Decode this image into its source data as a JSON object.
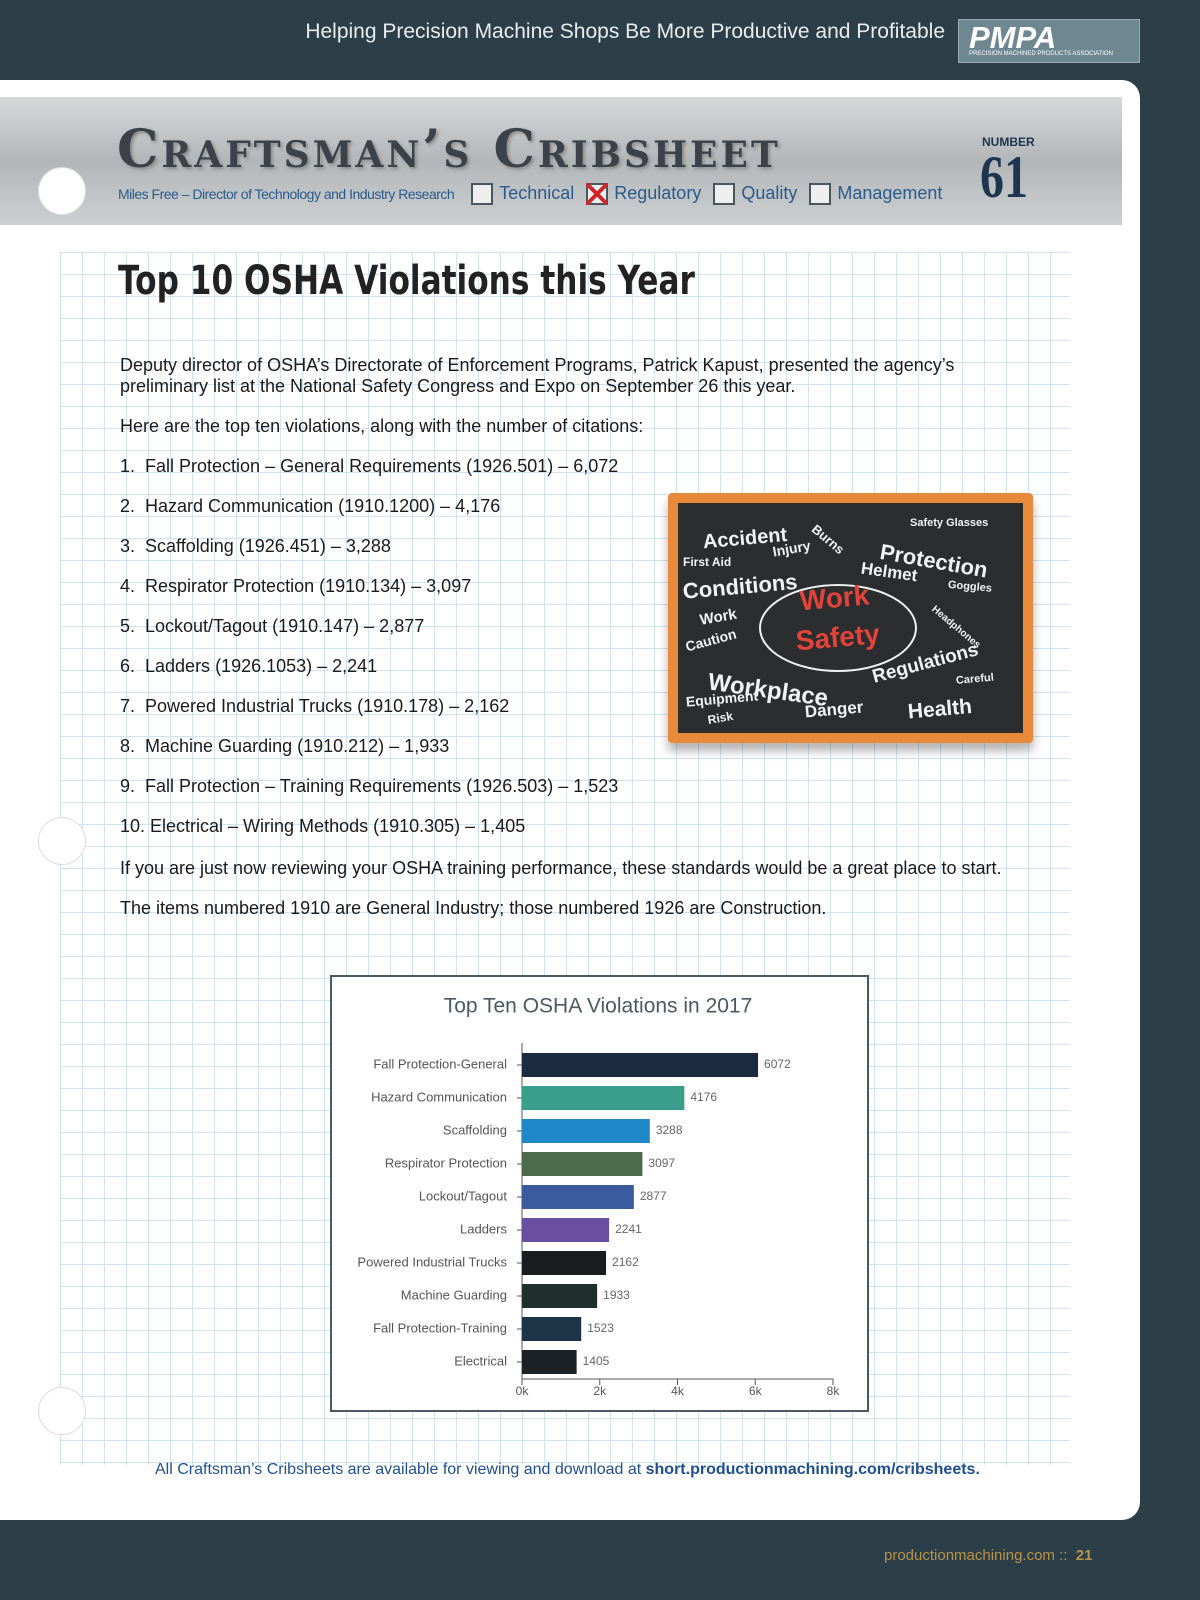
{
  "header": {
    "tagline": "Helping Precision Machine Shops Be More Productive and Profitable",
    "logo": "PMPA",
    "logo_sub": "PRECISION MACHINED PRODUCTS ASSOCIATION"
  },
  "banner": {
    "title": "Craftsman’s Cribsheet",
    "author": "Miles Free – Director of Technology and Industry Research",
    "categories": [
      {
        "label": "Technical",
        "checked": false
      },
      {
        "label": "Regulatory",
        "checked": true
      },
      {
        "label": "Quality",
        "checked": false
      },
      {
        "label": "Management",
        "checked": false
      }
    ],
    "number_label": "NUMBER",
    "number": "61"
  },
  "article": {
    "title": "Top 10 OSHA Violations this Year",
    "intro": "Deputy director of OSHA’s Directorate of Enforcement Programs, Patrick Kapust, presented the agency’s preliminary list at the National Safety Congress and Expo on September 26 this year.",
    "lead": "Here are the top ten violations, along with the number of citations:",
    "list": [
      "1.  Fall Protection – General Requirements (1926.501) – 6,072",
      "2.  Hazard Communication (1910.1200) – 4,176",
      "3.  Scaffolding (1926.451) – 3,288",
      "4.  Respirator Protection (1910.134) – 3,097",
      "5.  Lockout/Tagout (1910.147) – 2,877",
      "6.  Ladders (1926.1053) – 2,241",
      "7.  Powered Industrial Trucks (1910.178) – 2,162",
      "8.  Machine Guarding (1910.212) – 1,933",
      "9.  Fall Protection – Training Requirements (1926.503) – 1,523",
      "10. Electrical – Wiring Methods (1910.305) – 1,405"
    ],
    "closing": [
      "If you are just now reviewing your OSHA training performance, these standards would be a great place to start.",
      "The items numbered 1910 are General Industry; those numbered 1926 are Construction."
    ]
  },
  "chalkboard": {
    "words": [
      "Accident",
      "Burns",
      "Injury",
      "Safety Glasses",
      "Protection",
      "First Aid",
      "Helmet",
      "Conditions",
      "Goggles",
      "Work",
      "Headphones",
      "Work",
      "Safety",
      "Caution",
      "Regulations",
      "Workplace",
      "Careful",
      "Equipment",
      "Danger",
      "Health",
      "Risk"
    ]
  },
  "chart_data": {
    "type": "bar",
    "orientation": "horizontal",
    "title": "Top Ten OSHA Violations in 2017",
    "categories": [
      "Fall Protection-General",
      "Hazard Communication",
      "Scaffolding",
      "Respirator Protection",
      "Lockout/Tagout",
      "Ladders",
      "Powered Industrial Trucks",
      "Machine Guarding",
      "Fall Protection-Training",
      "Electrical"
    ],
    "values": [
      6072,
      4176,
      3288,
      3097,
      2877,
      2241,
      2162,
      1933,
      1523,
      1405
    ],
    "colors": [
      "#1c2a40",
      "#3a9e8c",
      "#1e88c8",
      "#4c6b4a",
      "#3a5b9e",
      "#6a4fa0",
      "#1a1d20",
      "#1f2f2c",
      "#1d3347",
      "#1c2126"
    ],
    "xlim": [
      0,
      8000
    ],
    "xticks": [
      {
        "value": 0,
        "label": "0k"
      },
      {
        "value": 2000,
        "label": "2k"
      },
      {
        "value": 4000,
        "label": "4k"
      },
      {
        "value": 6000,
        "label": "6k"
      },
      {
        "value": 8000,
        "label": "8k"
      }
    ]
  },
  "footer": {
    "note": "All Craftsman’s Cribsheets are available for viewing and download at ",
    "link": "short.productionmachining.com/cribsheets.",
    "site": "productionmachining.com",
    "separator": "::",
    "page": "21"
  }
}
